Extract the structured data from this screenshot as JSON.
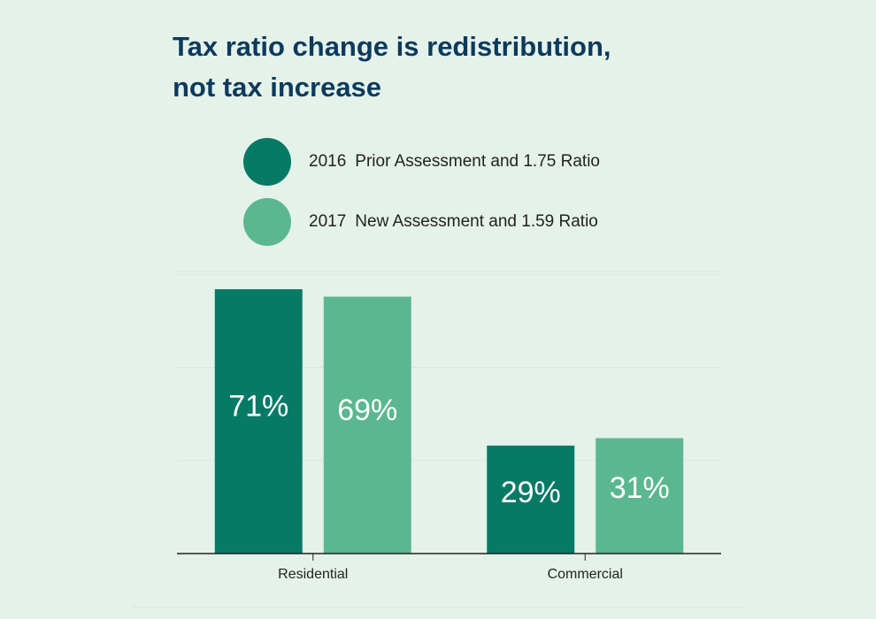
{
  "title_lines": [
    "Tax ratio change is redistribution,",
    "not tax increase"
  ],
  "chart_data": {
    "type": "bar",
    "title": "Tax ratio change is redistribution, not tax increase",
    "categories": [
      "Residential",
      "Commercial"
    ],
    "series": [
      {
        "name": "2016 Prior Assessment and 1.75 Ratio",
        "year": "2016",
        "label": "Prior Assessment and 1.75 Ratio",
        "color": "#077a66",
        "values": [
          71,
          29
        ],
        "data_labels": [
          "71%",
          "29%"
        ]
      },
      {
        "name": "2017 New Assessment and 1.59 Ratio",
        "year": "2017",
        "label": "New Assessment and 1.59 Ratio",
        "color": "#5bb78f",
        "values": [
          69,
          31
        ],
        "data_labels": [
          "69%",
          "31%"
        ]
      }
    ],
    "xlabel": "",
    "ylabel": "",
    "ylim": [
      0,
      75
    ],
    "y_gridlines": [
      25,
      50,
      75
    ],
    "grid": true,
    "y_tick_labels_shown": false,
    "legend_placement": "top",
    "unit": "%"
  }
}
